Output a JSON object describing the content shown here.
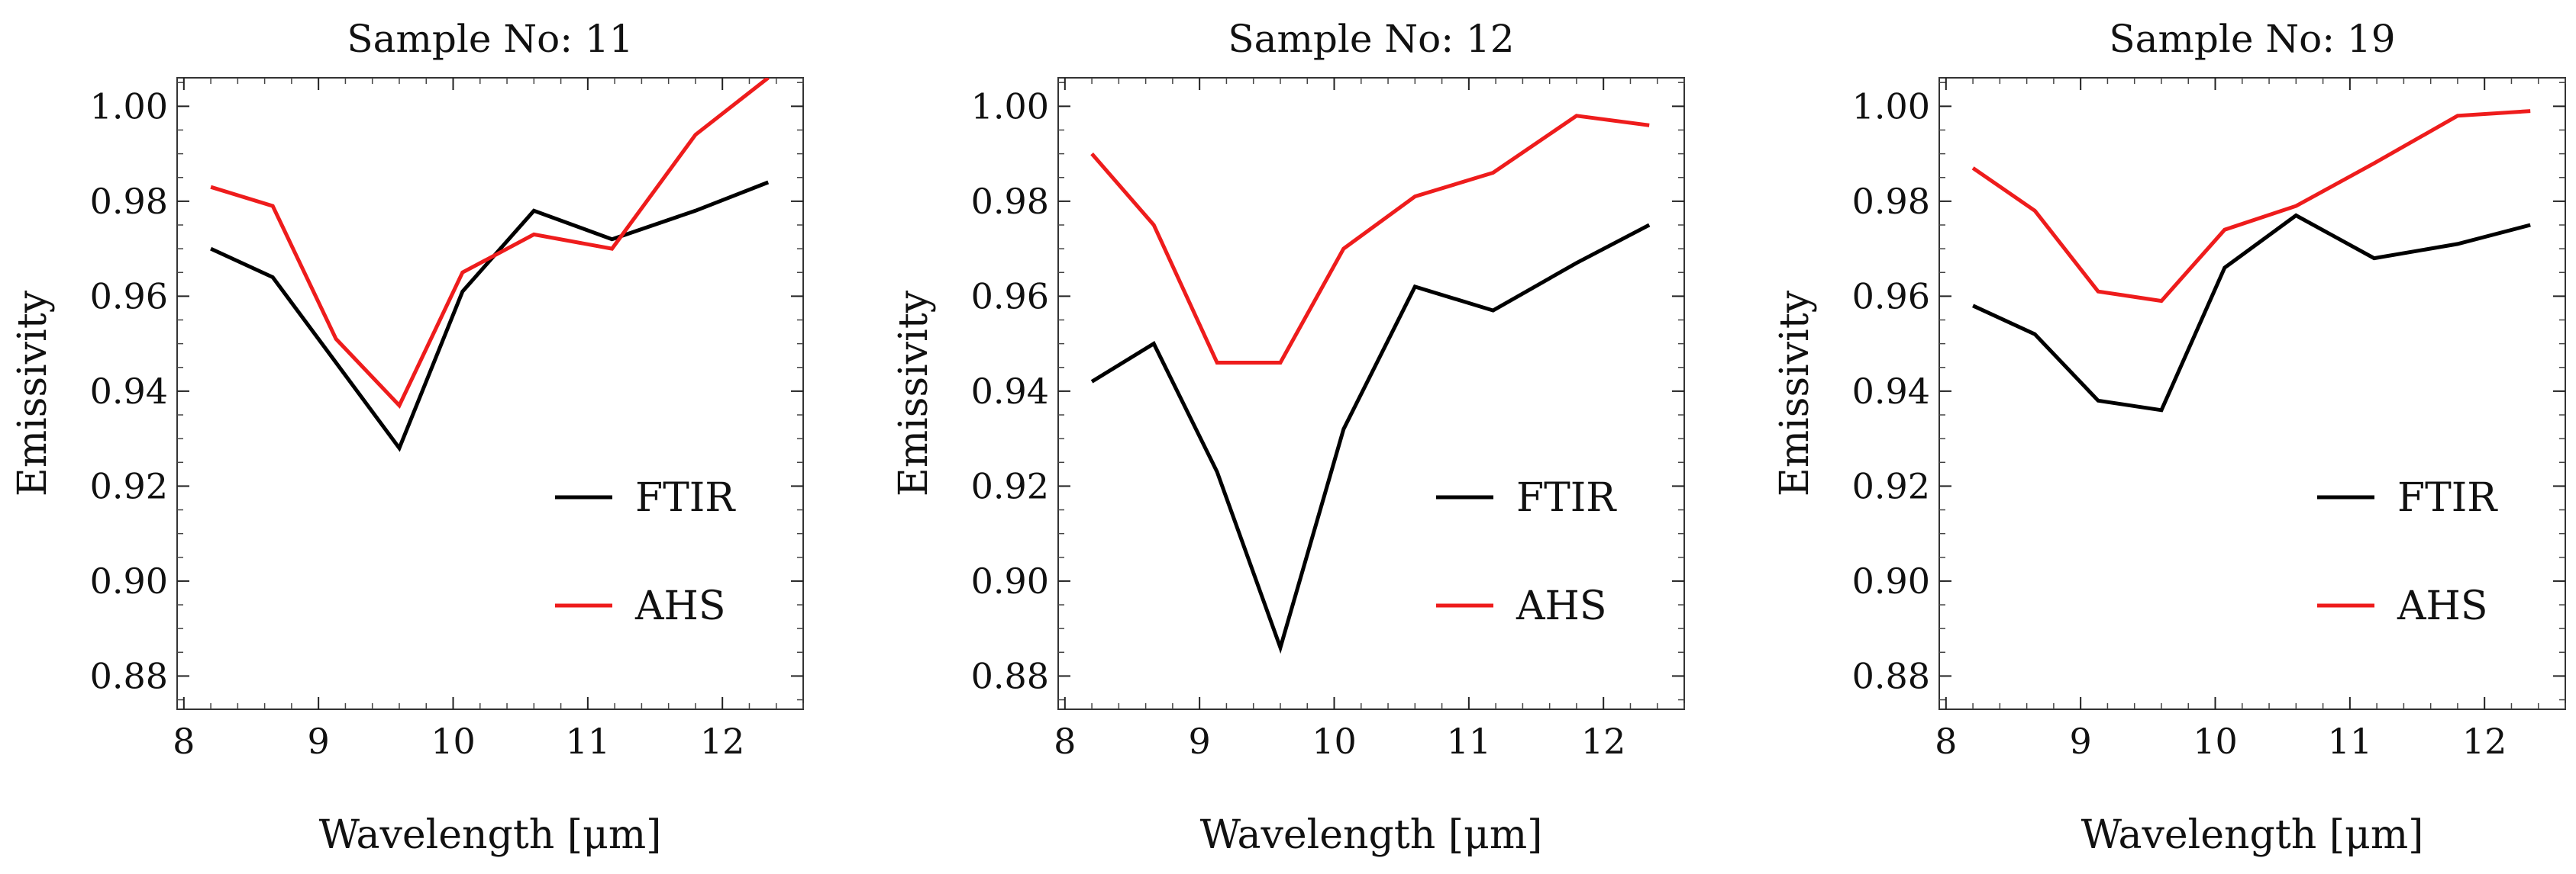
{
  "chart_data": [
    {
      "type": "line",
      "title": "Sample No: 11",
      "xlabel": "Wavelength [μm]",
      "ylabel": "Emissivity",
      "xlim": [
        7.95,
        12.6
      ],
      "ylim": [
        0.873,
        1.006
      ],
      "xticks": [
        "8",
        "9",
        "10",
        "11",
        "12"
      ],
      "yticks": [
        "0.88",
        "0.90",
        "0.92",
        "0.94",
        "0.96",
        "0.98",
        "1.00"
      ],
      "x": [
        8.2,
        8.66,
        9.13,
        9.6,
        10.07,
        10.6,
        11.18,
        11.8,
        12.34
      ],
      "series": [
        {
          "name": "FTIR",
          "color": "#000000",
          "values": [
            0.97,
            0.964,
            0.946,
            0.928,
            0.961,
            0.978,
            0.972,
            0.978,
            0.984
          ]
        },
        {
          "name": "AHS",
          "color": "#ee1c1c",
          "values": [
            0.983,
            0.979,
            0.951,
            0.937,
            0.965,
            0.973,
            0.97,
            0.994,
            1.006
          ]
        }
      ],
      "legend": "center-right"
    },
    {
      "type": "line",
      "title": "Sample No: 12",
      "xlabel": "Wavelength [μm]",
      "ylabel": "Emissivity",
      "xlim": [
        7.95,
        12.6
      ],
      "ylim": [
        0.873,
        1.006
      ],
      "xticks": [
        "8",
        "9",
        "10",
        "11",
        "12"
      ],
      "yticks": [
        "0.88",
        "0.90",
        "0.92",
        "0.94",
        "0.96",
        "0.98",
        "1.00"
      ],
      "x": [
        8.2,
        8.66,
        9.13,
        9.6,
        10.07,
        10.6,
        11.18,
        11.8,
        12.34
      ],
      "series": [
        {
          "name": "FTIR",
          "color": "#000000",
          "values": [
            0.942,
            0.95,
            0.923,
            0.886,
            0.932,
            0.962,
            0.957,
            0.967,
            0.975
          ]
        },
        {
          "name": "AHS",
          "color": "#ee1c1c",
          "values": [
            0.99,
            0.975,
            0.946,
            0.946,
            0.97,
            0.981,
            0.986,
            0.998,
            0.996
          ]
        }
      ],
      "legend": "center-right"
    },
    {
      "type": "line",
      "title": "Sample No: 19",
      "xlabel": "Wavelength [μm]",
      "ylabel": "Emissivity",
      "xlim": [
        7.95,
        12.6
      ],
      "ylim": [
        0.873,
        1.006
      ],
      "xticks": [
        "8",
        "9",
        "10",
        "11",
        "12"
      ],
      "yticks": [
        "0.88",
        "0.90",
        "0.92",
        "0.94",
        "0.96",
        "0.98",
        "1.00"
      ],
      "x": [
        8.2,
        8.66,
        9.13,
        9.6,
        10.07,
        10.6,
        11.18,
        11.8,
        12.34
      ],
      "series": [
        {
          "name": "FTIR",
          "color": "#000000",
          "values": [
            0.958,
            0.952,
            0.938,
            0.936,
            0.966,
            0.977,
            0.968,
            0.971,
            0.975
          ]
        },
        {
          "name": "AHS",
          "color": "#ee1c1c",
          "values": [
            0.987,
            0.978,
            0.961,
            0.959,
            0.974,
            0.979,
            0.988,
            0.998,
            0.999
          ]
        }
      ],
      "legend": "center-right"
    }
  ]
}
